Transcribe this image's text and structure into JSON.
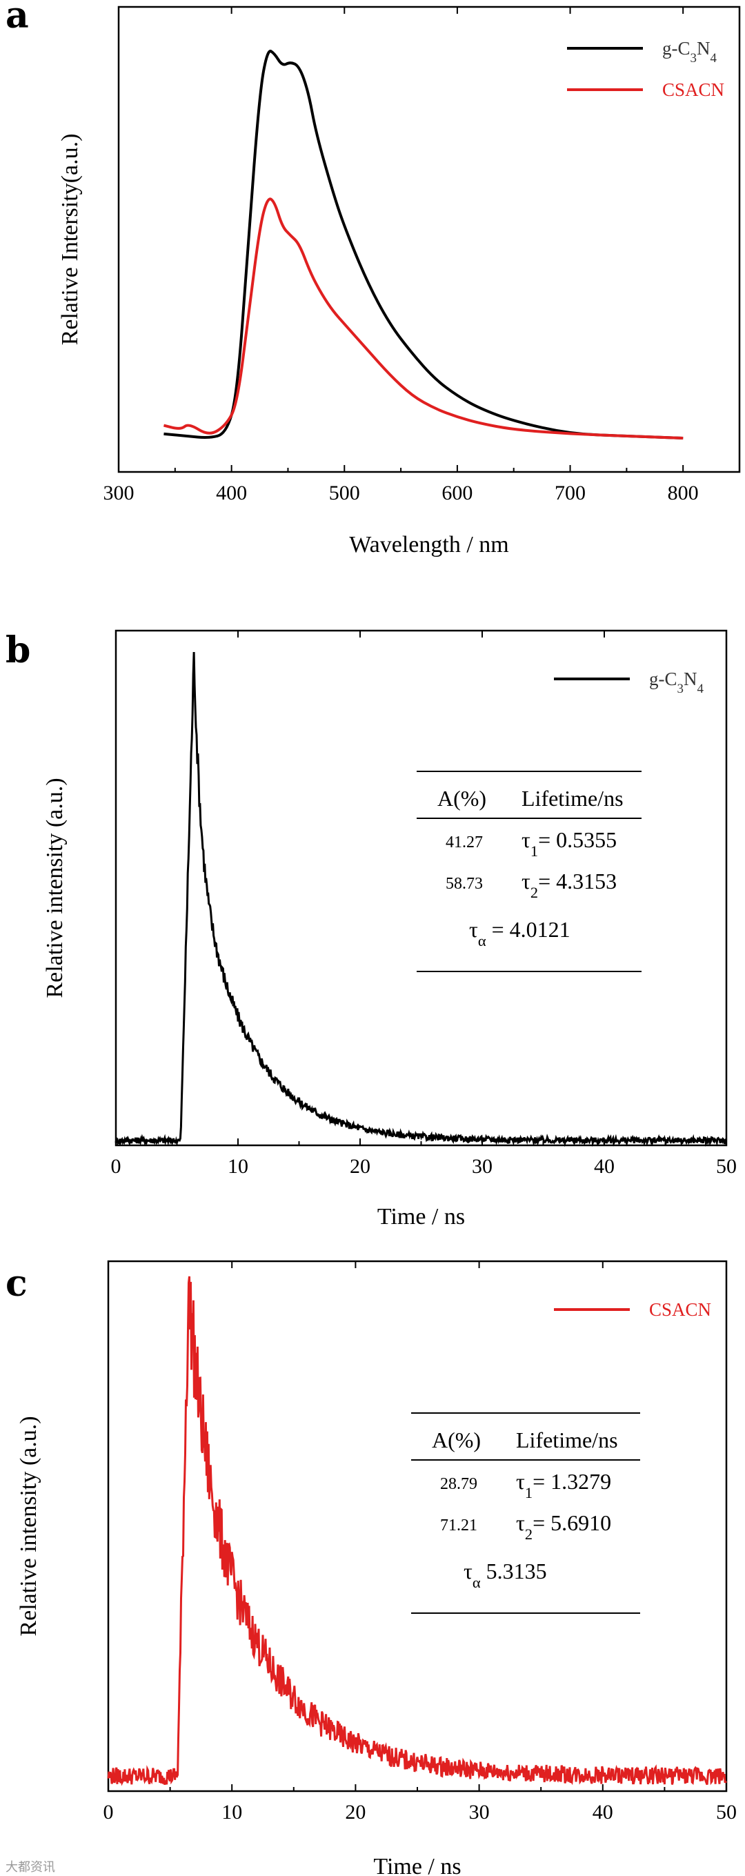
{
  "chart_data": [
    {
      "panel": "a",
      "type": "line",
      "xlabel": "Wavelength / nm",
      "ylabel": "Relative Intersity(a.u.)",
      "xlim": [
        300,
        850
      ],
      "xticks": [
        300,
        400,
        500,
        600,
        700,
        800
      ],
      "ylim": [
        0,
        1.1
      ],
      "yticks_shown": false,
      "legend": "top-right",
      "series": [
        {
          "name": "g-C3N4",
          "color": "#000000",
          "x": [
            340,
            360,
            380,
            395,
            405,
            415,
            425,
            432,
            438,
            445,
            452,
            460,
            468,
            475,
            490,
            500,
            520,
            540,
            560,
            580,
            600,
            620,
            650,
            700,
            750,
            800
          ],
          "y": [
            0.09,
            0.085,
            0.08,
            0.09,
            0.18,
            0.55,
            0.9,
            1.0,
            0.99,
            0.96,
            0.97,
            0.96,
            0.9,
            0.8,
            0.66,
            0.58,
            0.45,
            0.35,
            0.28,
            0.22,
            0.18,
            0.15,
            0.12,
            0.09,
            0.085,
            0.08
          ]
        },
        {
          "name": "CSACN",
          "color": "#e02020",
          "x": [
            340,
            355,
            362,
            380,
            395,
            405,
            415,
            425,
            432,
            438,
            445,
            452,
            460,
            470,
            480,
            490,
            500,
            520,
            540,
            560,
            580,
            600,
            620,
            650,
            700,
            750,
            800
          ],
          "y": [
            0.11,
            0.1,
            0.115,
            0.085,
            0.11,
            0.16,
            0.37,
            0.58,
            0.65,
            0.64,
            0.58,
            0.56,
            0.54,
            0.47,
            0.42,
            0.38,
            0.35,
            0.29,
            0.23,
            0.18,
            0.15,
            0.13,
            0.115,
            0.1,
            0.09,
            0.085,
            0.08
          ]
        }
      ],
      "legend_labels": [
        {
          "main": "g-C",
          "sub1": "3",
          "mid": "N",
          "sub2": "4"
        },
        {
          "main": "CSACN"
        }
      ]
    },
    {
      "panel": "b",
      "type": "line",
      "xlabel": "Time / ns",
      "ylabel": "Relative intensity (a.u.)",
      "xlim": [
        0,
        50
      ],
      "xticks": [
        0,
        10,
        20,
        30,
        40,
        50
      ],
      "ylim": [
        0,
        1.05
      ],
      "yticks_shown": false,
      "legend": "top-right",
      "series": [
        {
          "name": "g-C3N4",
          "color": "#000000",
          "peak_time": 6.4,
          "rise_start": 5.3,
          "baseline": 0.01,
          "amplitude": 1.0,
          "tau1": 0.5355,
          "tau2": 4.3153,
          "A1": 41.27,
          "A2": 58.73,
          "noise": 0.012
        }
      ],
      "legend_labels": [
        {
          "main": "g-C",
          "sub1": "3",
          "mid": "N",
          "sub2": "4"
        }
      ],
      "table": {
        "headers": [
          "A(%)",
          "Lifetime/ns"
        ],
        "rows": [
          {
            "a": "41.27",
            "sym": "τ",
            "sub": "1",
            "val": "= 0.5355"
          },
          {
            "a": "58.73",
            "sym": "τ",
            "sub": "2",
            "val": "= 4.3153"
          }
        ],
        "avg": {
          "sym": "τ",
          "sub": "α",
          "val": "= 4.0121"
        }
      }
    },
    {
      "panel": "c",
      "type": "line",
      "xlabel": "Time / ns",
      "ylabel": "Relative intensity (a.u.)",
      "xlim": [
        0,
        50
      ],
      "xticks": [
        0,
        10,
        20,
        30,
        40,
        50
      ],
      "ylim": [
        0,
        1.05
      ],
      "yticks_shown": false,
      "legend": "top-right",
      "series": [
        {
          "name": "CSACN",
          "color": "#e02020",
          "peak_time": 6.5,
          "rise_start": 5.6,
          "baseline": 0.03,
          "amplitude": 1.0,
          "tau1": 1.3279,
          "tau2": 5.691,
          "A1": 28.79,
          "A2": 71.21,
          "noise": 0.035
        }
      ],
      "legend_labels": [
        {
          "main": "CSACN"
        }
      ],
      "table": {
        "headers": [
          "A(%)",
          "Lifetime/ns"
        ],
        "rows": [
          {
            "a": "28.79",
            "sym": "τ",
            "sub": "1",
            "val": "= 1.3279"
          },
          {
            "a": "71.21",
            "sym": "τ",
            "sub": "2",
            "val": "= 5.6910"
          }
        ],
        "avg": {
          "sym": "τ",
          "sub": "α",
          "val": "5.3135"
        }
      }
    }
  ],
  "watermark": "大都资讯"
}
